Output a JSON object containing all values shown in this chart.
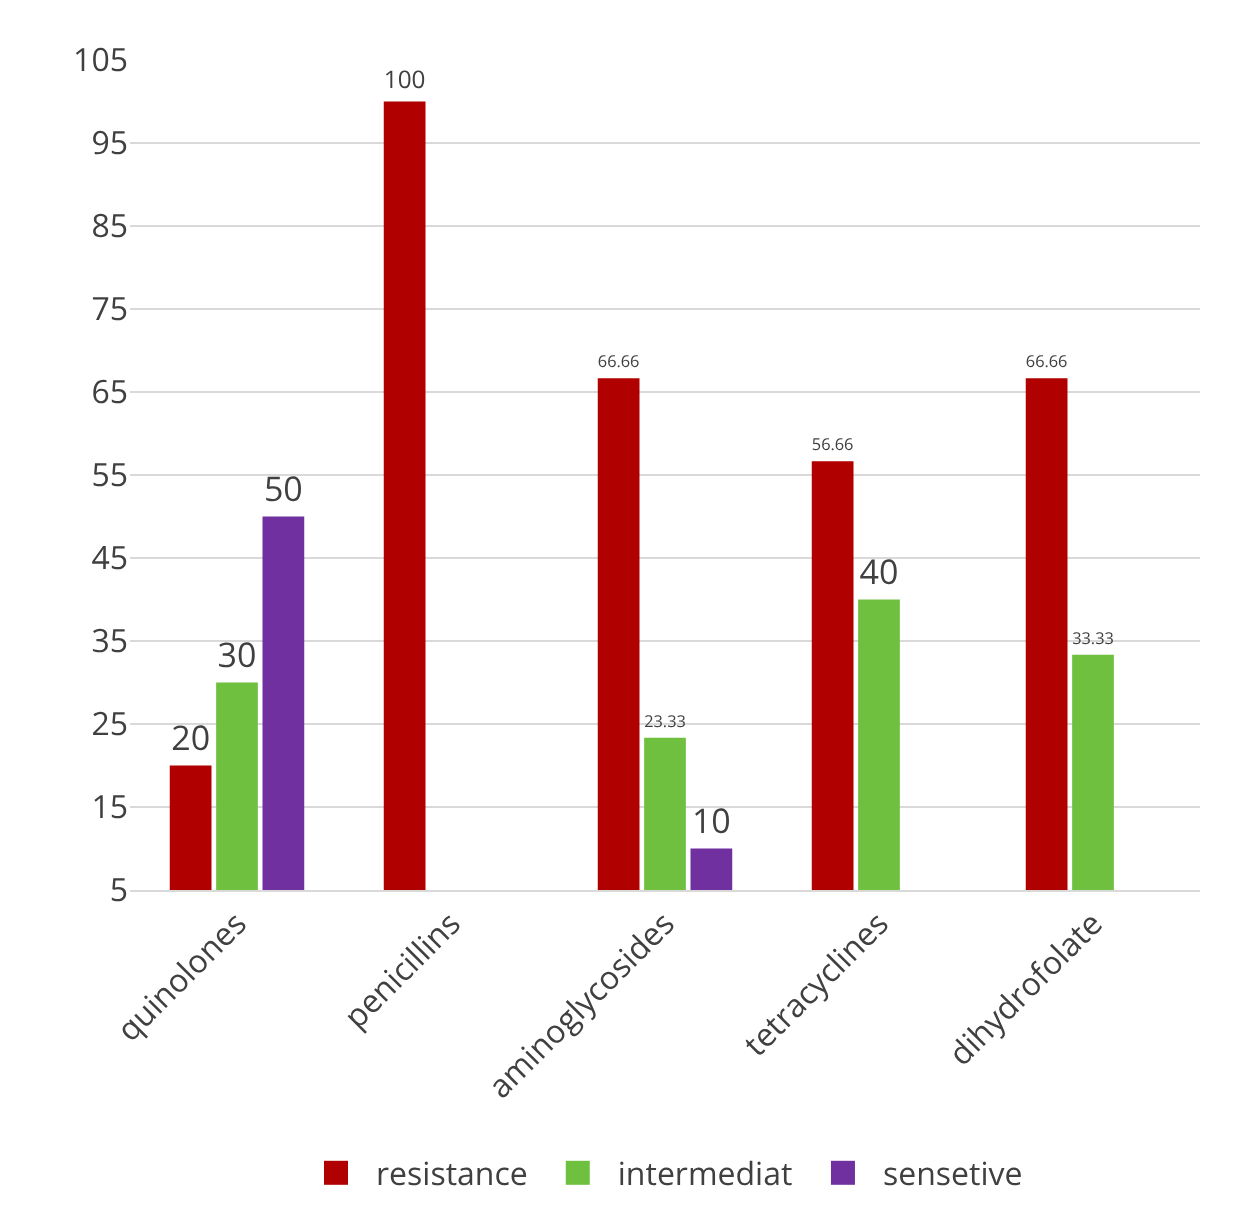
{
  "chart_data": {
    "type": "bar",
    "categories": [
      "quinolones",
      "penicillins",
      "aminoglycosides",
      "tetracyclines",
      "dihydrofolate"
    ],
    "series": [
      {
        "name": "resistance",
        "color": "#b00000",
        "values": [
          20,
          100,
          66.66,
          56.66,
          66.66
        ]
      },
      {
        "name": "intermediat",
        "color": "#70c040",
        "values": [
          30,
          null,
          23.33,
          40,
          33.33
        ]
      },
      {
        "name": "sensetive",
        "color": "#7030a0",
        "values": [
          50,
          null,
          10,
          null,
          null
        ]
      }
    ],
    "ylim": [
      5,
      105
    ],
    "yticks": [
      5,
      15,
      25,
      35,
      45,
      55,
      65,
      75,
      85,
      95,
      105
    ],
    "grid": "y",
    "legend": "bottom",
    "data_labels": true
  }
}
